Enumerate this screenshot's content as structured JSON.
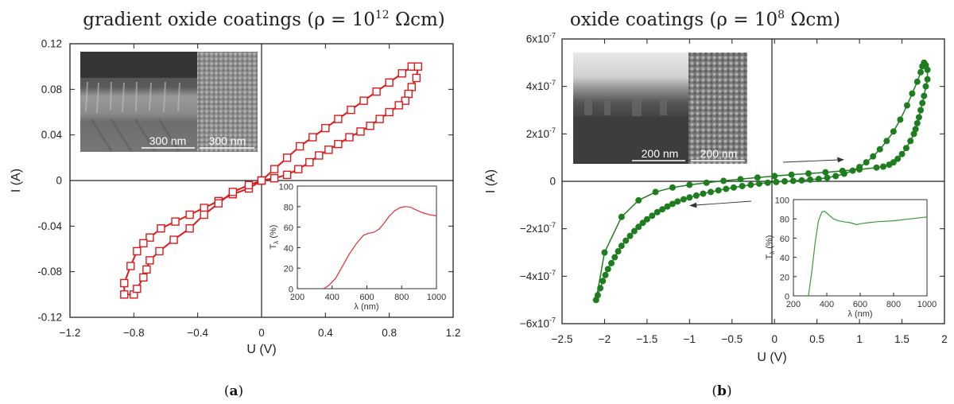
{
  "panel_a": {
    "title": "gradient oxide coatings (ρ = 10",
    "title_exp": "12",
    "title_tail": " Ωcm)",
    "caption": "a",
    "scalebar_left": "300 nm",
    "scalebar_right": "300 nm"
  },
  "panel_b": {
    "title": "oxide coatings (ρ = 10",
    "title_exp": "8",
    "title_tail": " Ωcm)",
    "caption": "b",
    "scalebar_left": "200 nm",
    "scalebar_right": "200 nm"
  },
  "chart_data": [
    {
      "id": "a-main",
      "type": "line",
      "xlabel": "U (V)",
      "ylabel": "I (A)",
      "xlim": [
        -1.2,
        1.2
      ],
      "ylim": [
        -0.12,
        0.12
      ],
      "xticks": [
        -1.2,
        -0.8,
        -0.4,
        0,
        0.4,
        0.8,
        1.2
      ],
      "xtick_labels": [
        "−1.2",
        "−0.8",
        "−0.4",
        "0",
        "0.4",
        "0.8",
        "1.2"
      ],
      "yticks": [
        -0.12,
        -0.08,
        -0.04,
        0,
        0.04,
        0.08,
        0.12
      ],
      "ytick_labels": [
        "-0.12",
        "-0.08",
        "-0.04",
        "0",
        "0.04",
        "0.08",
        "0.12"
      ],
      "color": "#dd1a1a",
      "marker": "open-square",
      "series": [
        {
          "x": [
            0,
            0.08,
            0.16,
            0.24,
            0.32,
            0.4,
            0.48,
            0.56,
            0.64,
            0.72,
            0.8,
            0.88,
            0.94,
            0.98,
            0.97,
            0.94,
            0.92,
            0.9,
            0.86,
            0.8,
            0.74,
            0.68,
            0.62,
            0.55,
            0.48,
            0.42,
            0.36,
            0.3,
            0.23,
            0.16,
            0.08,
            0,
            -0.08,
            -0.18,
            -0.27,
            -0.36,
            -0.45,
            -0.54,
            -0.63,
            -0.7,
            -0.74,
            -0.78,
            -0.82,
            -0.86,
            -0.86,
            -0.8,
            -0.78,
            -0.74,
            -0.72,
            -0.7,
            -0.64,
            -0.55,
            -0.45,
            -0.36,
            -0.27,
            -0.18,
            -0.08,
            0
          ],
          "y": [
            0,
            0.01,
            0.02,
            0.03,
            0.038,
            0.046,
            0.054,
            0.062,
            0.07,
            0.078,
            0.086,
            0.094,
            0.1,
            0.1,
            0.09,
            0.082,
            0.076,
            0.07,
            0.066,
            0.06,
            0.054,
            0.048,
            0.043,
            0.038,
            0.032,
            0.027,
            0.022,
            0.016,
            0.01,
            0.005,
            0.002,
            0,
            -0.007,
            -0.012,
            -0.018,
            -0.024,
            -0.03,
            -0.036,
            -0.042,
            -0.05,
            -0.055,
            -0.062,
            -0.075,
            -0.09,
            -0.1,
            -0.1,
            -0.095,
            -0.085,
            -0.078,
            -0.07,
            -0.062,
            -0.052,
            -0.042,
            -0.03,
            -0.02,
            -0.01,
            -0.004,
            0
          ]
        }
      ]
    },
    {
      "id": "a-inset",
      "type": "line",
      "xlabel": "λ (nm)",
      "ylabel": "T",
      "ylabel_sub": "λ",
      "ylabel_tail": " (%)",
      "xlim": [
        200,
        1000
      ],
      "ylim": [
        0,
        100
      ],
      "xticks": [
        200,
        400,
        600,
        800,
        1000
      ],
      "yticks": [
        0,
        20,
        40,
        60,
        80,
        100
      ],
      "color": "#e03030",
      "series": [
        {
          "x": [
            350,
            380,
            420,
            460,
            500,
            540,
            580,
            610,
            640,
            670,
            700,
            730,
            760,
            790,
            820,
            850,
            880,
            920,
            960,
            1000
          ],
          "y": [
            0,
            3,
            10,
            22,
            34,
            44,
            52,
            54,
            55,
            58,
            64,
            71,
            76,
            79,
            80,
            79.5,
            77,
            74,
            72,
            71
          ]
        }
      ]
    },
    {
      "id": "b-main",
      "type": "scatter",
      "xlabel": "U (V)",
      "ylabel": "I (A)",
      "xlim": [
        -2.5,
        2
      ],
      "ylim": [
        -6e-07,
        6e-07
      ],
      "xticks": [
        -2.5,
        -2,
        -1.5,
        -1,
        -0.5,
        0,
        0.5,
        1,
        1.5,
        2
      ],
      "xtick_labels": [
        "−2.5",
        "−2",
        "−1.5",
        "−1",
        "−0.5",
        "0",
        "0.5",
        "1",
        "1.5",
        "2"
      ],
      "yticks": [
        -6e-07,
        -4e-07,
        -2e-07,
        0,
        2e-07,
        4e-07,
        6e-07
      ],
      "ytick_labels": [
        "−6x10",
        "−4x10",
        "−2x10",
        "0",
        "2x10",
        "4x10",
        "6x10"
      ],
      "ytick_exp": "-7",
      "color": "#1e7d1e",
      "marker": "filled-circle",
      "series": [
        {
          "x": [
            -2.1,
            -2.08,
            -2.05,
            -2.02,
            -1.99,
            -1.96,
            -1.92,
            -1.88,
            -1.84,
            -1.8,
            -1.75,
            -1.7,
            -1.65,
            -1.6,
            -1.55,
            -1.5,
            -1.44,
            -1.38,
            -1.32,
            -1.26,
            -1.2,
            -1.14,
            -1.07,
            -1.0,
            -0.92,
            -0.84,
            -0.75,
            -0.66,
            -0.57,
            -0.48,
            -0.38,
            -0.28,
            -0.18,
            -0.08,
            0.02,
            0.12,
            0.22,
            0.32,
            0.42,
            0.52,
            0.62,
            0.72,
            0.82,
            0.92,
            1.0,
            1.08,
            1.16,
            1.24,
            1.32,
            1.4,
            1.48,
            1.56,
            1.62,
            1.68,
            1.72,
            1.74,
            1.76,
            1.78,
            1.8,
            1.8,
            1.78,
            1.76,
            1.74,
            1.72,
            1.7,
            1.68,
            1.66,
            1.64,
            1.6,
            1.55,
            1.5,
            1.45,
            1.4,
            1.35,
            1.28,
            1.2,
            1.0,
            0.8,
            0.6,
            0.4,
            0.2,
            0,
            -0.2,
            -0.4,
            -0.6,
            -0.8,
            -1.0,
            -1.2,
            -1.4,
            -1.6,
            -1.8,
            -2.0,
            -2.1
          ],
          "y": [
            -5e-07,
            -4.8e-07,
            -4.5e-07,
            -4.2e-07,
            -3.95e-07,
            -3.7e-07,
            -3.45e-07,
            -3.2e-07,
            -2.95e-07,
            -2.72e-07,
            -2.5e-07,
            -2.3e-07,
            -2.1e-07,
            -1.92e-07,
            -1.75e-07,
            -1.6e-07,
            -1.45e-07,
            -1.3e-07,
            -1.18e-07,
            -1.06e-07,
            -9.5e-08,
            -8.5e-08,
            -7.6e-08,
            -6.8e-08,
            -6e-08,
            -5.2e-08,
            -4.5e-08,
            -3.8e-08,
            -3.2e-08,
            -2.6e-08,
            -2e-08,
            -1.5e-08,
            -1e-08,
            -6e-09,
            -3e-09,
            0,
            2e-09,
            4e-09,
            7e-09,
            1e-08,
            1.5e-08,
            2.2e-08,
            3.2e-08,
            4.5e-08,
            6e-08,
            8e-08,
            1.05e-07,
            1.35e-07,
            1.7e-07,
            2.1e-07,
            2.6e-07,
            3.2e-07,
            3.7e-07,
            4.2e-07,
            4.6e-07,
            4.85e-07,
            5e-07,
            4.9e-07,
            4.7e-07,
            4.3e-07,
            4e-07,
            3.6e-07,
            3.3e-07,
            3e-07,
            2.7e-07,
            2.45e-07,
            2.2e-07,
            2e-07,
            1.7e-07,
            1.4e-07,
            1.15e-07,
            9.5e-08,
            8e-08,
            7e-08,
            6.2e-08,
            5.8e-08,
            5e-08,
            4.4e-08,
            3.8e-08,
            3.3e-08,
            2.8e-08,
            2.2e-08,
            1.6e-08,
            9e-09,
            2e-09,
            -6e-09,
            -1.5e-08,
            -2.6e-08,
            -4.5e-08,
            -8e-08,
            -1.5e-07,
            -3e-07,
            -5e-07
          ]
        }
      ]
    },
    {
      "id": "b-inset",
      "type": "line",
      "xlabel": "λ (nm)",
      "ylabel": "T",
      "ylabel_sub": "λ",
      "ylabel_tail": " (%)",
      "xlim": [
        200,
        1000
      ],
      "ylim": [
        0,
        100
      ],
      "xticks": [
        200,
        400,
        600,
        800,
        1000
      ],
      "yticks": [
        0,
        20,
        40,
        60,
        80,
        100
      ],
      "color": "#3a9a3a",
      "series": [
        {
          "x": [
            290,
            310,
            330,
            350,
            370,
            385,
            400,
            420,
            440,
            470,
            500,
            540,
            580,
            600,
            650,
            700,
            800,
            900,
            1000
          ],
          "y": [
            0,
            25,
            55,
            78,
            87,
            88,
            86,
            83,
            80,
            78,
            77,
            76,
            74,
            75,
            76,
            77,
            78,
            80,
            82
          ]
        }
      ]
    }
  ]
}
